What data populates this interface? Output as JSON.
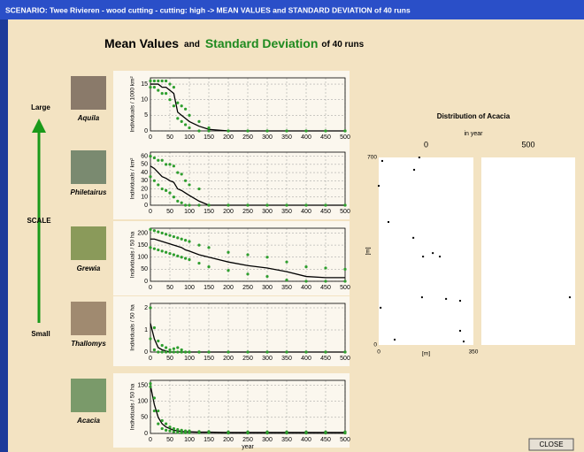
{
  "window": {
    "title": "SCENARIO: Twee Rivieren - wood cutting - cutting: high -> MEAN VALUES and STANDARD DEVIATION of 40 runs"
  },
  "header": {
    "part1": "Mean Values",
    "part2": "and",
    "part3": "Standard Deviation",
    "part4": "of 40 runs"
  },
  "scale": {
    "large": "Large",
    "label": "SCALE",
    "small": "Small"
  },
  "button": {
    "label": "CLOSE"
  },
  "chart_data": [
    {
      "type": "line",
      "species": "Aquila",
      "ylabel": "Individuals / 1000 km²",
      "x": [
        0,
        10,
        20,
        30,
        40,
        50,
        60,
        70,
        80,
        90,
        100,
        125,
        150,
        200,
        250,
        300,
        350,
        400,
        450,
        500
      ],
      "xlim": [
        0,
        500
      ],
      "xticks": [
        0,
        50,
        100,
        150,
        200,
        250,
        300,
        350,
        400,
        450,
        500
      ],
      "ylim": [
        0,
        17
      ],
      "yticks": [
        0,
        5,
        10,
        15
      ],
      "grid": true,
      "series": [
        {
          "style": "line",
          "color": "#000000",
          "values": [
            15,
            15,
            15,
            14,
            14,
            13,
            12,
            6,
            5,
            4,
            3,
            1.5,
            0.5,
            0,
            0,
            0,
            0,
            0,
            0,
            0
          ]
        },
        {
          "style": "dots",
          "color": "#2e9e2e",
          "values": [
            16,
            16,
            16,
            16,
            16,
            15,
            14,
            9,
            8,
            7,
            5,
            3,
            1,
            0,
            0,
            0,
            0,
            0,
            0,
            0
          ]
        },
        {
          "style": "dots",
          "color": "#2e9e2e",
          "values": [
            14,
            14,
            13,
            12,
            12,
            10,
            8,
            4,
            3,
            2,
            1,
            0,
            0,
            0,
            0,
            0,
            0,
            0,
            0,
            0
          ]
        }
      ]
    },
    {
      "type": "line",
      "species": "Philetairus",
      "ylabel": "Individuals / km²",
      "x": [
        0,
        10,
        20,
        30,
        40,
        50,
        60,
        70,
        80,
        90,
        100,
        125,
        150,
        200,
        250,
        300,
        350,
        400,
        450,
        500
      ],
      "xlim": [
        0,
        500
      ],
      "xticks": [
        0,
        50,
        100,
        150,
        200,
        250,
        300,
        350,
        400,
        450,
        500
      ],
      "ylim": [
        0,
        65
      ],
      "yticks": [
        0,
        10,
        20,
        30,
        40,
        50,
        60
      ],
      "grid": true,
      "series": [
        {
          "style": "line",
          "color": "#000000",
          "values": [
            48,
            45,
            40,
            35,
            33,
            30,
            28,
            20,
            18,
            15,
            12,
            5,
            0,
            0,
            0,
            0,
            0,
            0,
            0,
            0
          ]
        },
        {
          "style": "dots",
          "color": "#2e9e2e",
          "values": [
            60,
            58,
            55,
            55,
            50,
            50,
            48,
            40,
            38,
            30,
            25,
            20,
            0,
            0,
            0,
            0,
            0,
            0,
            0,
            0
          ]
        },
        {
          "style": "dots",
          "color": "#2e9e2e",
          "values": [
            35,
            30,
            25,
            20,
            18,
            15,
            10,
            5,
            3,
            0,
            0,
            0,
            0,
            0,
            0,
            0,
            0,
            0,
            0,
            0
          ]
        }
      ]
    },
    {
      "type": "line",
      "species": "Grewia",
      "ylabel": "Individuals / 50 ha",
      "x": [
        0,
        10,
        20,
        30,
        40,
        50,
        60,
        70,
        80,
        90,
        100,
        125,
        150,
        200,
        250,
        300,
        350,
        400,
        450,
        500
      ],
      "xlim": [
        0,
        500
      ],
      "xticks": [
        0,
        50,
        100,
        150,
        200,
        250,
        300,
        350,
        400,
        450,
        500
      ],
      "ylim": [
        0,
        220
      ],
      "yticks": [
        0,
        50,
        100,
        150,
        200
      ],
      "grid": true,
      "series": [
        {
          "style": "line",
          "color": "#000000",
          "values": [
            175,
            175,
            170,
            165,
            160,
            155,
            150,
            145,
            140,
            130,
            125,
            110,
            100,
            80,
            65,
            55,
            40,
            20,
            15,
            15
          ]
        },
        {
          "style": "dots",
          "color": "#2e9e2e",
          "values": [
            215,
            210,
            205,
            200,
            195,
            190,
            185,
            180,
            175,
            170,
            165,
            150,
            140,
            120,
            110,
            100,
            80,
            60,
            55,
            50
          ]
        },
        {
          "style": "dots",
          "color": "#2e9e2e",
          "values": [
            140,
            135,
            130,
            125,
            120,
            115,
            110,
            105,
            100,
            95,
            90,
            75,
            60,
            45,
            30,
            20,
            5,
            0,
            0,
            0
          ]
        }
      ]
    },
    {
      "type": "line",
      "species": "Thallomys",
      "ylabel": "Individuals / 50 ha",
      "x": [
        0,
        10,
        20,
        30,
        40,
        50,
        60,
        70,
        80,
        90,
        100,
        125,
        150,
        200,
        250,
        300,
        350,
        400,
        450,
        500
      ],
      "xlim": [
        0,
        500
      ],
      "xticks": [
        0,
        50,
        100,
        150,
        200,
        250,
        300,
        350,
        400,
        450,
        500
      ],
      "ylim": [
        0,
        2.2
      ],
      "yticks": [
        0,
        1,
        2
      ],
      "grid": true,
      "series": [
        {
          "style": "line",
          "color": "#000000",
          "values": [
            1.3,
            0.6,
            0.2,
            0.1,
            0.05,
            0,
            0,
            0,
            0,
            0,
            0,
            0,
            0,
            0,
            0,
            0,
            0,
            0,
            0,
            0
          ]
        },
        {
          "style": "dots",
          "color": "#2e9e2e",
          "values": [
            2,
            1.1,
            0.5,
            0.3,
            0.2,
            0.1,
            0.15,
            0.2,
            0.1,
            0,
            0,
            0,
            0,
            0,
            0,
            0,
            0,
            0,
            0,
            0
          ]
        },
        {
          "style": "dots",
          "color": "#2e9e2e",
          "values": [
            0.6,
            0.1,
            0,
            0,
            0,
            0,
            0,
            0,
            0,
            0,
            0,
            0,
            0,
            0,
            0,
            0,
            0,
            0,
            0,
            0
          ]
        }
      ]
    },
    {
      "type": "line",
      "species": "Acacia",
      "ylabel": "Individuals / 50 ha",
      "xlabel": "year",
      "x": [
        0,
        10,
        20,
        30,
        40,
        50,
        60,
        70,
        80,
        90,
        100,
        125,
        150,
        200,
        250,
        300,
        350,
        400,
        450,
        500
      ],
      "xlim": [
        0,
        500
      ],
      "xticks": [
        0,
        50,
        100,
        150,
        200,
        250,
        300,
        350,
        400,
        450,
        500
      ],
      "ylim": [
        0,
        165
      ],
      "yticks": [
        0,
        50,
        100,
        150
      ],
      "grid": true,
      "series": [
        {
          "style": "line",
          "color": "#000000",
          "values": [
            150,
            90,
            50,
            30,
            20,
            15,
            10,
            8,
            6,
            5,
            5,
            4,
            4,
            3,
            3,
            3,
            3,
            3,
            3,
            3
          ]
        },
        {
          "style": "dots",
          "color": "#2e9e2e",
          "values": [
            155,
            110,
            70,
            40,
            30,
            20,
            15,
            12,
            10,
            8,
            8,
            6,
            6,
            5,
            5,
            5,
            5,
            5,
            5,
            5
          ]
        },
        {
          "style": "dots",
          "color": "#2e9e2e",
          "values": [
            145,
            70,
            30,
            15,
            10,
            8,
            5,
            3,
            2,
            2,
            2,
            2,
            2,
            1,
            1,
            1,
            1,
            1,
            1,
            1
          ]
        }
      ]
    },
    {
      "type": "scatter",
      "title": "Distribution of Acacia",
      "subtitle": "in year",
      "xlabel": "[m]",
      "ylabel": "[m]",
      "xlim": [
        0,
        350
      ],
      "ylim": [
        0,
        700
      ],
      "xticks": [
        0,
        350
      ],
      "yticks": [
        0,
        700
      ],
      "panels": [
        {
          "title": "0",
          "x": [
            13,
            0,
            150,
            131,
            36,
            128,
            164,
            200,
            226,
            160,
            249,
            301,
            7,
            301,
            314,
            59
          ],
          "y": [
            687,
            594,
            700,
            654,
            459,
            400,
            330,
            343,
            330,
            178,
            172,
            165,
            139,
            53,
            13,
            20
          ]
        },
        {
          "title": "500",
          "x": [
            330
          ],
          "y": [
            178
          ]
        }
      ]
    }
  ]
}
